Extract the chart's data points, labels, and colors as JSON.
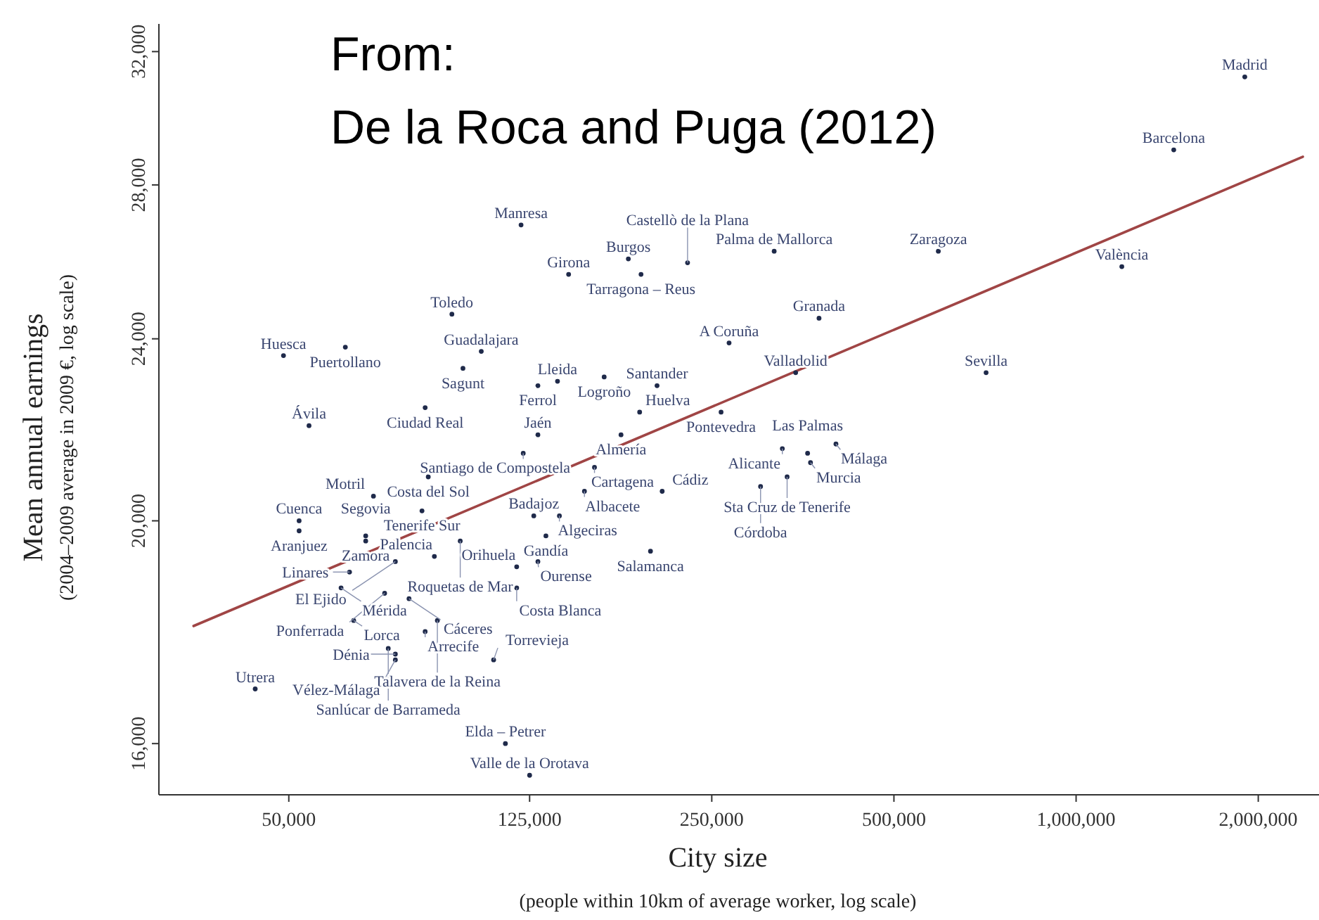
{
  "chart_data": {
    "type": "scatter",
    "xlabel": "City size",
    "ylabel": "Mean annual earnings",
    "log": "xy",
    "grid": false,
    "marker": "circle",
    "xlim": [
      30500,
      2520000
    ],
    "ylim": [
      15200,
      32900
    ],
    "xticks": [
      {
        "value": 50000,
        "label": "50,000"
      },
      {
        "value": 125000,
        "label": "125,000"
      },
      {
        "value": 250000,
        "label": "250,000"
      },
      {
        "value": 500000,
        "label": "500,000"
      },
      {
        "value": 1000000,
        "label": "1,000,000"
      },
      {
        "value": 2000000,
        "label": "2,000,000"
      }
    ],
    "yticks": [
      {
        "value": 16000,
        "label": "16,000"
      },
      {
        "value": 20000,
        "label": "20,000"
      },
      {
        "value": 24000,
        "label": "24,000"
      },
      {
        "value": 28000,
        "label": "28,000"
      },
      {
        "value": 32000,
        "label": "32,000"
      }
    ],
    "series": [
      {
        "type": "scatter",
        "color": "#1f2a4a",
        "x": [
          1900000,
          1450000,
          592000,
          1190000,
          710000,
          121000,
          182000,
          145000,
          191000,
          228000,
          317000,
          93000,
          104000,
          97000,
          84000,
          129000,
          139000,
          166000,
          203000,
          190000,
          267000,
          376000,
          344000,
          259000,
          177000,
          129000,
          122000,
          160000,
          85000,
          154000,
          207000,
          127000,
          140000,
          133000,
          119000,
          129000,
          198000,
          83000,
          69000,
          52000,
          52000,
          67000,
          96000,
          67000,
          87000,
          75000,
          63000,
          72000,
          61000,
          79000,
          119000,
          64000,
          88000,
          84000,
          73000,
          75000,
          75000,
          109000,
          44000,
          114000,
          125000,
          49000,
          62000,
          54000,
          327000,
          360000,
          401000,
          364000,
          333000,
          301000
        ],
        "values": [
          31200,
          29000,
          26200,
          25800,
          23200,
          26900,
          26000,
          25600,
          25600,
          25900,
          26200,
          24600,
          23700,
          23300,
          22400,
          22900,
          23000,
          23100,
          22900,
          22300,
          23900,
          24500,
          23200,
          22300,
          21800,
          21800,
          21400,
          21100,
          20900,
          20600,
          20600,
          20100,
          20100,
          19700,
          19100,
          19200,
          19400,
          20200,
          20500,
          20000,
          19800,
          19700,
          19600,
          19600,
          19300,
          19200,
          19000,
          18600,
          18700,
          18500,
          18700,
          18100,
          18100,
          17900,
          17600,
          17500,
          17400,
          17400,
          16900,
          16000,
          15500,
          23600,
          23800,
          22000,
          21500,
          21400,
          21600,
          21200,
          20900,
          20700
        ]
      },
      {
        "type": "line",
        "color": "#a04545",
        "marker": "none",
        "line_style": "solid",
        "x": [
          34800,
          2370000
        ],
        "values": [
          18000,
          28800
        ]
      }
    ],
    "annotations": [
      "From:",
      "De la Roca and Puga (2012)",
      "(people within 10km of average worker, log scale)",
      "(2004–2009 average in 2009 €, log scale)",
      {
        "text": "Madrid",
        "x": 1900000,
        "y": 31200
      },
      {
        "text": "Barcelona",
        "x": 1450000,
        "y": 29000
      },
      {
        "text": "Zaragoza",
        "x": 592000,
        "y": 26200
      },
      {
        "text": "València",
        "x": 1190000,
        "y": 25800
      },
      {
        "text": "Sevilla",
        "x": 710000,
        "y": 23200
      },
      {
        "text": "Manresa",
        "x": 121000,
        "y": 26900
      },
      {
        "text": "Burgos",
        "x": 182000,
        "y": 26000
      },
      {
        "text": "Girona",
        "x": 145000,
        "y": 25600
      },
      {
        "text": "Tarragona – Reus",
        "x": 191000,
        "y": 25600
      },
      {
        "text": "Castellò de la Plana",
        "x": 228000,
        "y": 25900
      },
      {
        "text": "Palma de Mallorca",
        "x": 317000,
        "y": 26200
      },
      {
        "text": "Toledo",
        "x": 93000,
        "y": 24600
      },
      {
        "text": "Guadalajara",
        "x": 104000,
        "y": 23700
      },
      {
        "text": "Sagunt",
        "x": 97000,
        "y": 23300
      },
      {
        "text": "Ciudad Real",
        "x": 84000,
        "y": 22400
      },
      {
        "text": "Ferrol",
        "x": 129000,
        "y": 22900
      },
      {
        "text": "Lleida",
        "x": 139000,
        "y": 23000
      },
      {
        "text": "Logroño",
        "x": 166000,
        "y": 23100
      },
      {
        "text": "Santander",
        "x": 203000,
        "y": 22900
      },
      {
        "text": "Huelva",
        "x": 190000,
        "y": 22300
      },
      {
        "text": "A Coruña",
        "x": 267000,
        "y": 23900
      },
      {
        "text": "Granada",
        "x": 376000,
        "y": 24500
      },
      {
        "text": "Valladolid",
        "x": 344000,
        "y": 23200
      },
      {
        "text": "Pontevedra",
        "x": 259000,
        "y": 22300
      },
      {
        "text": "Almería",
        "x": 177000,
        "y": 21800
      },
      {
        "text": "Jaén",
        "x": 129000,
        "y": 21800
      },
      {
        "text": "Santiago de Compostela",
        "x": 122000,
        "y": 21400
      },
      {
        "text": "Cartagena",
        "x": 160000,
        "y": 21100
      },
      {
        "text": "Costa del Sol",
        "x": 85000,
        "y": 20900
      },
      {
        "text": "Albacete",
        "x": 154000,
        "y": 20600
      },
      {
        "text": "Cádiz",
        "x": 207000,
        "y": 20600
      },
      {
        "text": "Badajoz",
        "x": 127000,
        "y": 20100
      },
      {
        "text": "Algeciras",
        "x": 140000,
        "y": 20100
      },
      {
        "text": "Gandía",
        "x": 133000,
        "y": 19700
      },
      {
        "text": "Orihuela",
        "x": 119000,
        "y": 19100
      },
      {
        "text": "Ourense",
        "x": 129000,
        "y": 19200
      },
      {
        "text": "Salamanca",
        "x": 198000,
        "y": 19400
      },
      {
        "text": "Tenerife Sur",
        "x": 83000,
        "y": 20200
      },
      {
        "text": "Motril",
        "x": 69000,
        "y": 20500
      },
      {
        "text": "Cuenca",
        "x": 52000,
        "y": 20000
      },
      {
        "text": "Aranjuez",
        "x": 52000,
        "y": 19800
      },
      {
        "text": "Segovia",
        "x": 67000,
        "y": 19700
      },
      {
        "text": "Roquetas de Mar",
        "x": 96000,
        "y": 19600
      },
      {
        "text": "Zamora",
        "x": 67000,
        "y": 19600
      },
      {
        "text": "Palencia",
        "x": 87000,
        "y": 19300
      },
      {
        "text": "El Ejido",
        "x": 75000,
        "y": 19200
      },
      {
        "text": "Linares",
        "x": 63000,
        "y": 19000
      },
      {
        "text": "Ponferrada",
        "x": 72000,
        "y": 18600
      },
      {
        "text": "Mérida",
        "x": 61000,
        "y": 18700
      },
      {
        "text": "Cáceres",
        "x": 79000,
        "y": 18500
      },
      {
        "text": "Costa Blanca",
        "x": 119000,
        "y": 18700
      },
      {
        "text": "Lorca",
        "x": 64000,
        "y": 18100
      },
      {
        "text": "Talavera de la Reina",
        "x": 88000,
        "y": 18100
      },
      {
        "text": "Arrecife",
        "x": 84000,
        "y": 17900
      },
      {
        "text": "Sanlúcar de Barrameda",
        "x": 73000,
        "y": 17600
      },
      {
        "text": "Dénia",
        "x": 75000,
        "y": 17500
      },
      {
        "text": "Vélez-Málaga",
        "x": 75000,
        "y": 17400
      },
      {
        "text": "Torrevieja",
        "x": 109000,
        "y": 17400
      },
      {
        "text": "Utrera",
        "x": 44000,
        "y": 16900
      },
      {
        "text": "Elda – Petrer",
        "x": 114000,
        "y": 16000
      },
      {
        "text": "Valle de la Orotava",
        "x": 125000,
        "y": 15500
      },
      {
        "text": "Huesca",
        "x": 49000,
        "y": 23600
      },
      {
        "text": "Puertollano",
        "x": 62000,
        "y": 23800
      },
      {
        "text": "Ávila",
        "x": 54000,
        "y": 22000
      },
      {
        "text": "Alicante",
        "x": 327000,
        "y": 21500
      },
      {
        "text": "Las Palmas",
        "x": 360000,
        "y": 21400
      },
      {
        "text": "Málaga",
        "x": 401000,
        "y": 21600
      },
      {
        "text": "Murcia",
        "x": 364000,
        "y": 21200
      },
      {
        "text": "Sta Cruz de Tenerife",
        "x": 333000,
        "y": 20900
      },
      {
        "text": "Córdoba",
        "x": 301000,
        "y": 20700
      }
    ]
  }
}
